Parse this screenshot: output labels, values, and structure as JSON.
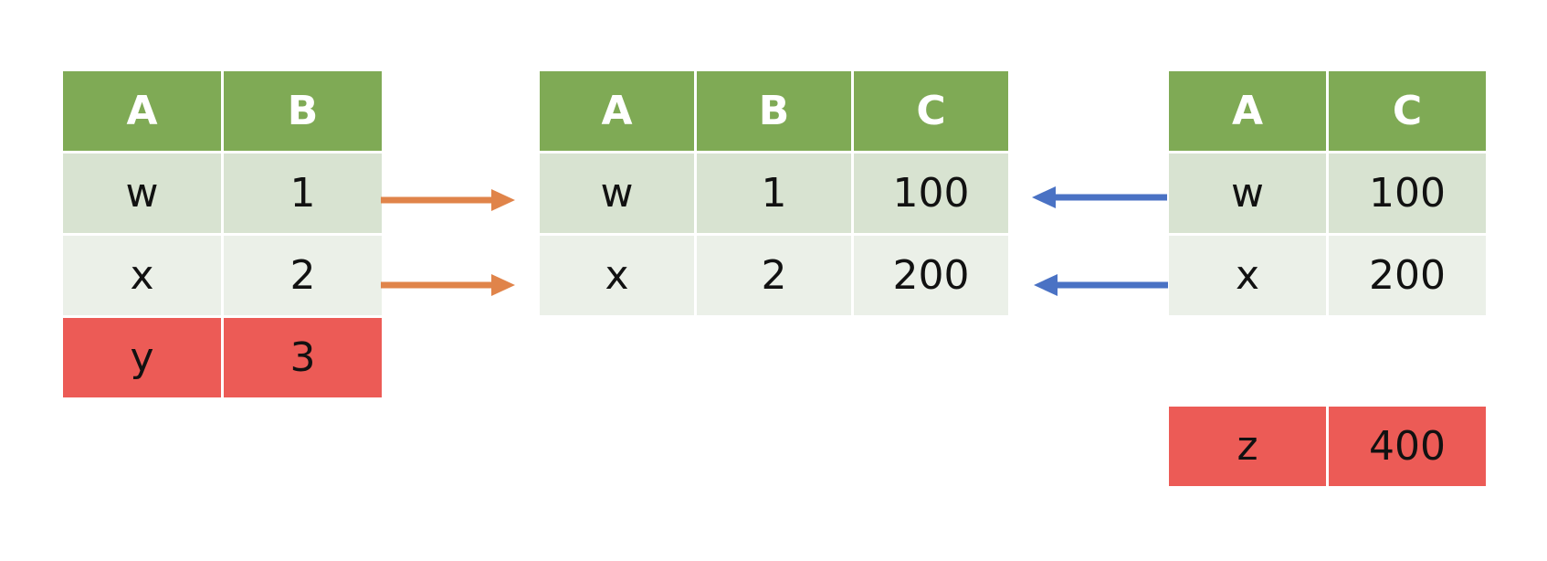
{
  "left_table": {
    "headers": [
      "A",
      "B"
    ],
    "rows": [
      [
        "w",
        "1"
      ],
      [
        "x",
        "2"
      ],
      [
        "y",
        "3"
      ]
    ]
  },
  "middle_table": {
    "headers": [
      "A",
      "B",
      "C"
    ],
    "rows": [
      [
        "w",
        "1",
        "100"
      ],
      [
        "x",
        "2",
        "200"
      ]
    ]
  },
  "right_table": {
    "headers": [
      "A",
      "C"
    ],
    "rows": [
      [
        "w",
        "100"
      ],
      [
        "x",
        "200"
      ]
    ],
    "unmatched_row": [
      "z",
      "400"
    ]
  },
  "colors": {
    "header": "#7faa55",
    "row_dark": "#d8e3d1",
    "row_light": "#ebf0e8",
    "unmatched": "#ec5b56",
    "left_arrow": "#e0844a",
    "right_arrow": "#4a72c4"
  }
}
